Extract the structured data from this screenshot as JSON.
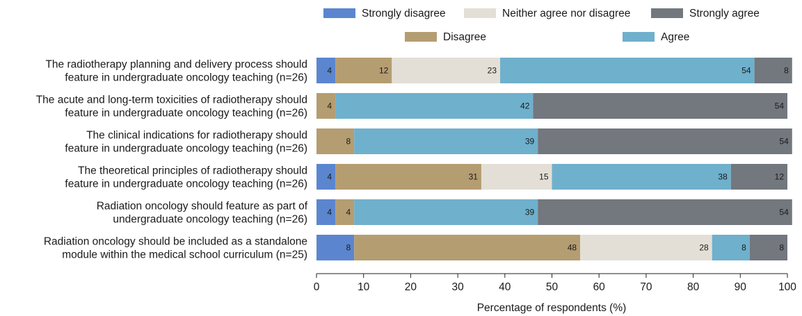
{
  "chart_data": {
    "type": "bar",
    "orientation": "horizontal",
    "stacked": true,
    "title": "",
    "xlabel": "Percentage of respondents (%)",
    "ylabel": "",
    "xlim": [
      0,
      100
    ],
    "xticks": [
      "0",
      "10",
      "20",
      "30",
      "40",
      "50",
      "60",
      "70",
      "80",
      "90",
      "100"
    ],
    "grid": false,
    "legend_position": "top",
    "categories": [
      [
        "The radiotherapy planning and delivery process should",
        "feature in undergraduate oncology teaching (n=26)"
      ],
      [
        "The acute and long-term toxicities of radiotherapy should",
        "feature in undergraduate oncology teaching (n=26)"
      ],
      [
        "The clinical indications for radiotherapy should",
        "feature in undergraduate oncology teaching (n=26)"
      ],
      [
        "The theoretical principles of radiotherapy should",
        "feature in undergraduate oncology teaching (n=26)"
      ],
      [
        "Radiation oncology should feature as part of",
        "undergraduate oncology teaching (n=26)"
      ],
      [
        "Radiation oncology should be included as a standalone",
        "module within the medical school curriculum (n=25)"
      ]
    ],
    "series": [
      {
        "name": "Strongly disagree",
        "color": "#5b86cf",
        "values": [
          4,
          0,
          0,
          4,
          4,
          8
        ]
      },
      {
        "name": "Disagree",
        "color": "#b59d72",
        "values": [
          12,
          4,
          8,
          31,
          4,
          48
        ]
      },
      {
        "name": "Neither agree nor disagree",
        "color": "#e3dfd6",
        "values": [
          23,
          0,
          0,
          15,
          0,
          28
        ]
      },
      {
        "name": "Agree",
        "color": "#6fb0cc",
        "values": [
          54,
          42,
          39,
          38,
          39,
          8
        ]
      },
      {
        "name": "Strongly agree",
        "color": "#73777e",
        "values": [
          8,
          54,
          54,
          12,
          54,
          8
        ]
      }
    ]
  }
}
